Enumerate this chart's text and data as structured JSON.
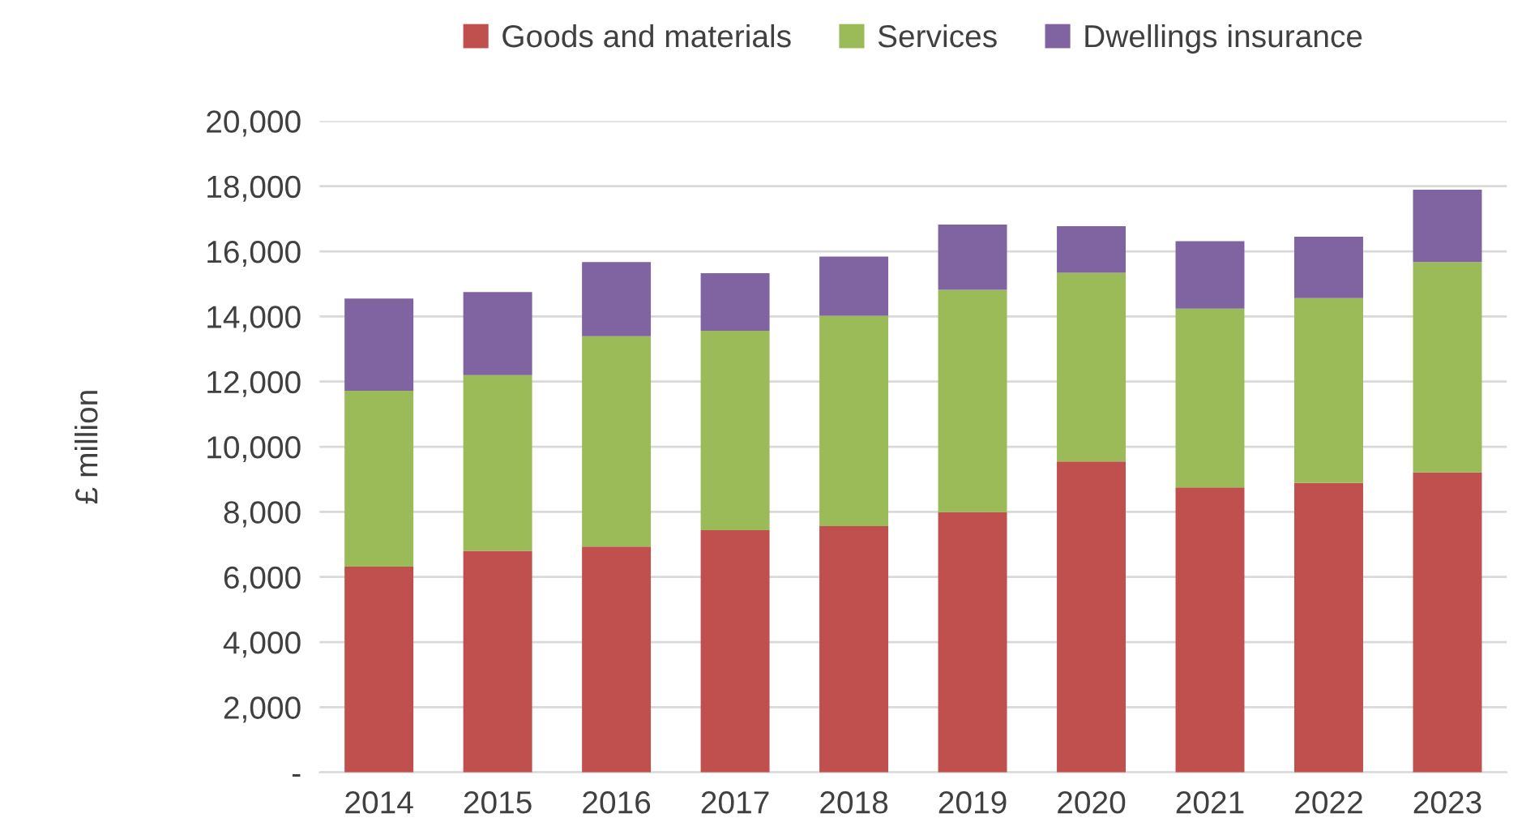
{
  "chart_data": {
    "type": "bar",
    "stacked": true,
    "ylabel": "£ million",
    "categories": [
      "2014",
      "2015",
      "2016",
      "2017",
      "2018",
      "2019",
      "2020",
      "2021",
      "2022",
      "2023"
    ],
    "series": [
      {
        "name": "Goods and materials",
        "color": "#c0504d",
        "values": [
          6320,
          6800,
          6930,
          7440,
          7560,
          7990,
          9550,
          8750,
          8890,
          9210
        ]
      },
      {
        "name": "Services",
        "color": "#9bbb59",
        "values": [
          5400,
          5400,
          6460,
          6120,
          6460,
          6830,
          5790,
          5490,
          5670,
          6460
        ]
      },
      {
        "name": "Dwellings insurance",
        "color": "#8064a2",
        "values": [
          2830,
          2550,
          2280,
          1770,
          1820,
          2000,
          1430,
          2070,
          1890,
          2220
        ]
      }
    ],
    "ylim": [
      0,
      20000
    ],
    "yticks": [
      {
        "value": 0,
        "label": "-"
      },
      {
        "value": 2000,
        "label": "2,000"
      },
      {
        "value": 4000,
        "label": "4,000"
      },
      {
        "value": 6000,
        "label": "6,000"
      },
      {
        "value": 8000,
        "label": "8,000"
      },
      {
        "value": 10000,
        "label": "10,000"
      },
      {
        "value": 12000,
        "label": "12,000"
      },
      {
        "value": 14000,
        "label": "14,000"
      },
      {
        "value": 16000,
        "label": "16,000"
      },
      {
        "value": 18000,
        "label": "18,000"
      },
      {
        "value": 20000,
        "label": "20,000"
      }
    ],
    "grid": "y",
    "legend": "top"
  }
}
